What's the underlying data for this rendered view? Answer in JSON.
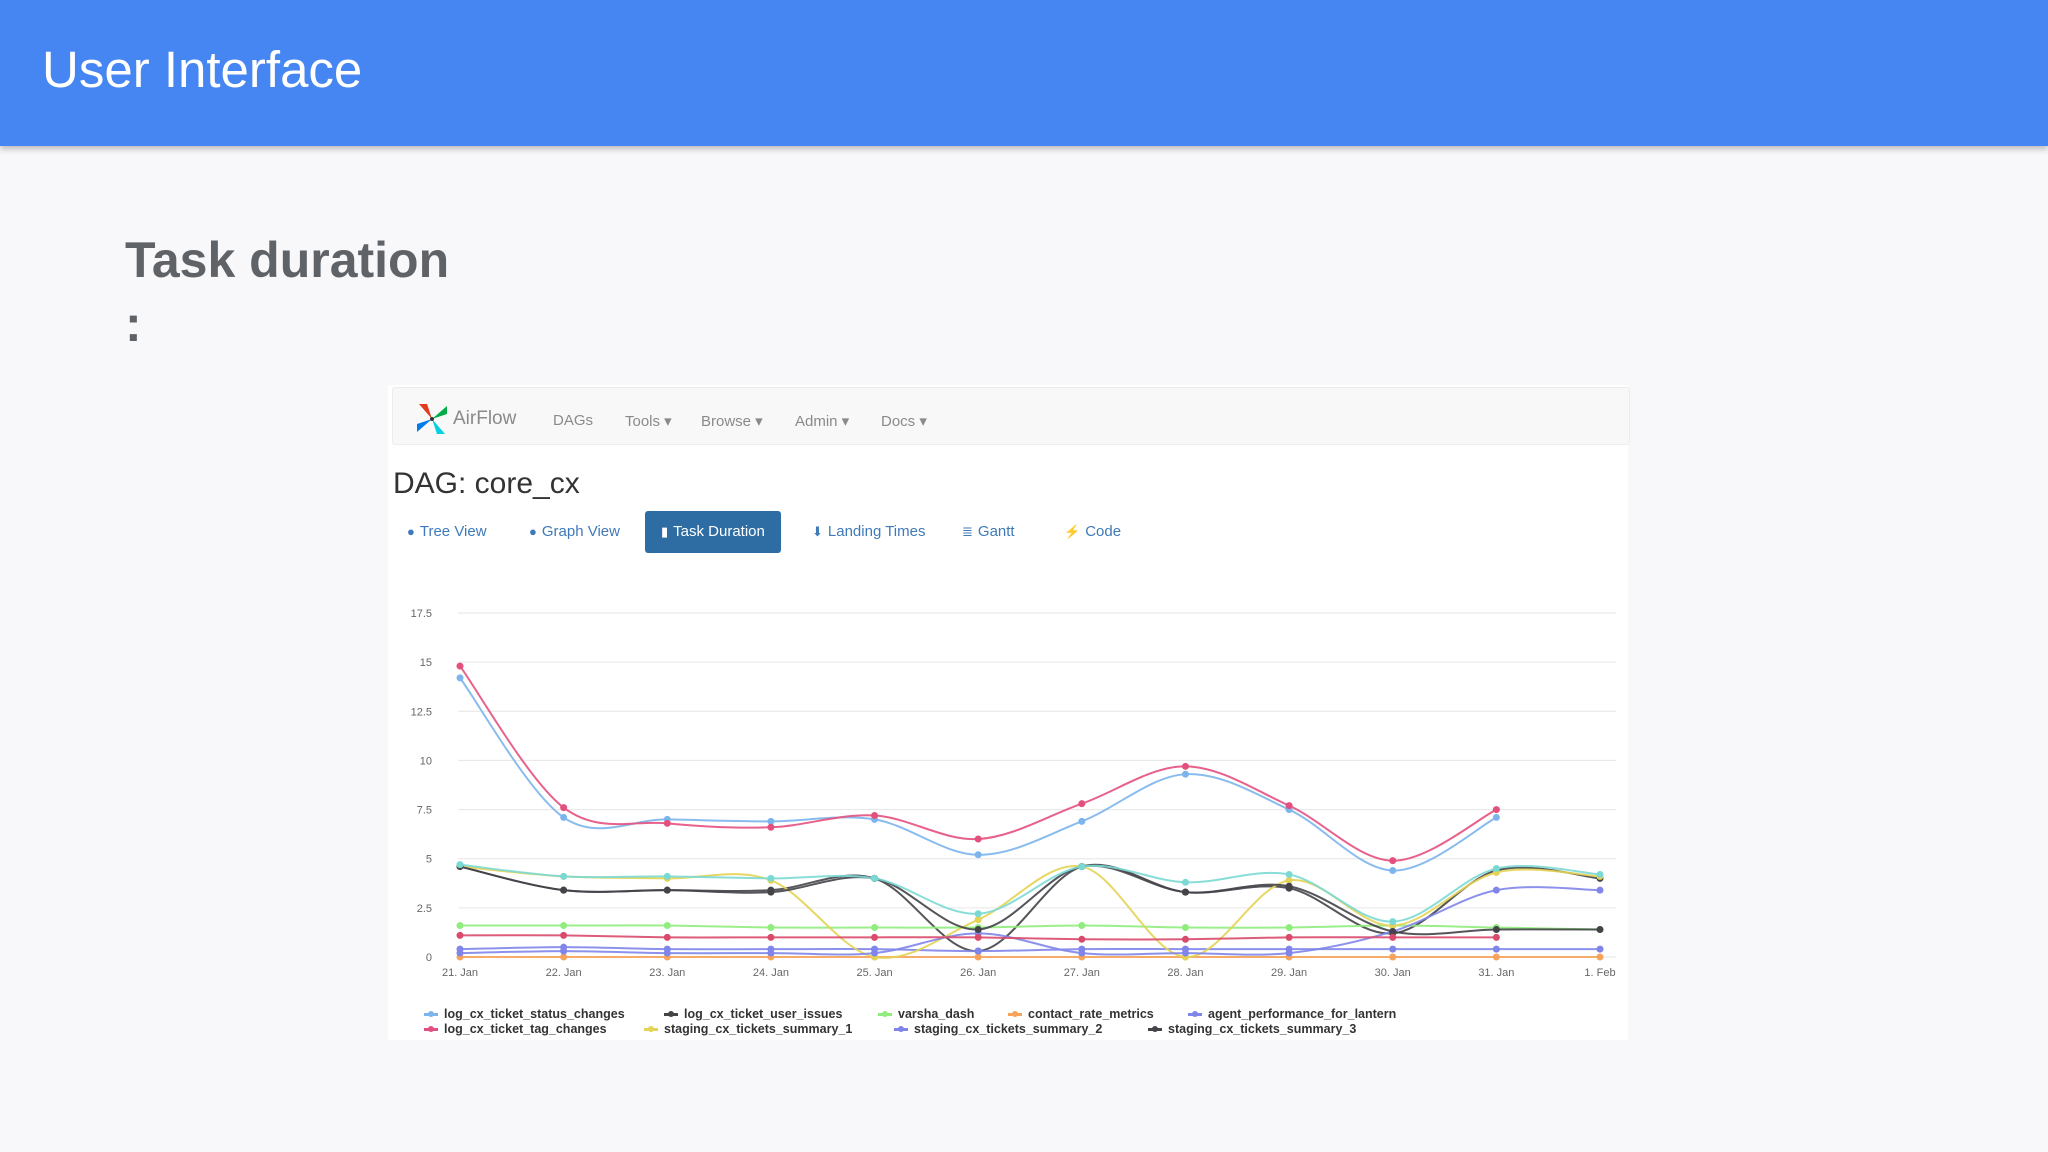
{
  "slide": {
    "title": "User Interface",
    "section_title": "Task duration\n:"
  },
  "airflow": {
    "brand": "AirFlow",
    "nav": [
      "DAGs",
      "Tools ▾",
      "Browse ▾",
      "Admin ▾",
      "Docs ▾"
    ],
    "dag_title": "DAG: core_cx",
    "tabs": [
      {
        "label": "Tree View",
        "icon": "tree-icon"
      },
      {
        "label": "Graph View",
        "icon": "graph-icon"
      },
      {
        "label": "Task Duration",
        "icon": "bar-chart-icon",
        "active": true
      },
      {
        "label": "Landing Times",
        "icon": "landing-icon"
      },
      {
        "label": "Gantt",
        "icon": "gantt-icon"
      },
      {
        "label": "Code",
        "icon": "bolt-icon"
      }
    ]
  },
  "chart_data": {
    "type": "line",
    "categories": [
      "21. Jan",
      "22. Jan",
      "23. Jan",
      "24. Jan",
      "25. Jan",
      "26. Jan",
      "27. Jan",
      "28. Jan",
      "29. Jan",
      "30. Jan",
      "31. Jan",
      "1. Feb"
    ],
    "ylim": [
      0,
      17.5
    ],
    "yticks": [
      "0",
      "2.5",
      "5",
      "7.5",
      "10",
      "12.5",
      "15",
      "17.5"
    ],
    "grid": true,
    "legend_position": "bottom",
    "series": [
      {
        "name": "log_cx_ticket_status_changes",
        "color": "#7cb5ec",
        "values": [
          14.2,
          7.1,
          7.0,
          6.9,
          7.0,
          5.2,
          6.9,
          9.3,
          7.5,
          4.4,
          7.1,
          null
        ]
      },
      {
        "name": "log_cx_ticket_user_issues",
        "color": "#434348",
        "values": [
          4.6,
          3.4,
          3.4,
          3.4,
          4.0,
          0.3,
          4.6,
          3.3,
          3.5,
          1.2,
          4.4,
          4.0
        ]
      },
      {
        "name": "varsha_dash",
        "color": "#90ed7d",
        "values": [
          1.6,
          1.6,
          1.6,
          1.5,
          1.5,
          1.5,
          1.6,
          1.5,
          1.5,
          1.6,
          1.5,
          1.4
        ]
      },
      {
        "name": "contact_rate_metrics",
        "color": "#f7a35c",
        "values": [
          0.0,
          0.0,
          0.0,
          0.0,
          0.0,
          0.0,
          0.0,
          0.0,
          0.0,
          0.0,
          0.0,
          0.0
        ]
      },
      {
        "name": "agent_performance_for_lantern",
        "color": "#8085e9",
        "values": [
          0.4,
          0.5,
          0.4,
          0.4,
          0.4,
          0.3,
          0.4,
          0.4,
          0.4,
          0.4,
          0.4,
          0.4
        ]
      },
      {
        "name": "log_cx_ticket_tag_changes",
        "color": "#e4507e",
        "values": [
          14.8,
          7.6,
          6.8,
          6.6,
          7.2,
          6.0,
          7.8,
          9.7,
          7.7,
          4.9,
          7.5,
          null
        ]
      },
      {
        "name": "staging_cx_tickets_summary_1",
        "color": "#e4d354",
        "values": [
          4.6,
          4.1,
          4.0,
          3.9,
          0.0,
          1.9,
          4.6,
          0.0,
          3.9,
          1.6,
          4.3,
          4.1
        ]
      },
      {
        "name": "staging_cx_tickets_summary_2",
        "color": "#8085e9",
        "values": [
          0.2,
          0.3,
          0.2,
          0.2,
          0.2,
          1.2,
          0.2,
          0.2,
          0.2,
          1.3,
          3.4,
          3.4
        ]
      },
      {
        "name": "staging_cx_tickets_summary_3",
        "color": "#434348",
        "values": [
          4.6,
          3.4,
          3.4,
          3.3,
          4.0,
          1.4,
          4.6,
          3.3,
          3.6,
          1.3,
          1.4,
          1.4
        ]
      }
    ],
    "extra_series": [
      {
        "name": "",
        "color": "#7bd9d4",
        "values": [
          4.7,
          4.1,
          4.1,
          4.0,
          4.0,
          2.2,
          4.6,
          3.8,
          4.2,
          1.8,
          4.5,
          4.2
        ]
      },
      {
        "name": "",
        "color": "#d94a6b",
        "values": [
          1.1,
          1.1,
          1.0,
          1.0,
          1.0,
          1.0,
          0.9,
          0.9,
          1.0,
          1.0,
          1.0,
          null
        ]
      }
    ]
  }
}
